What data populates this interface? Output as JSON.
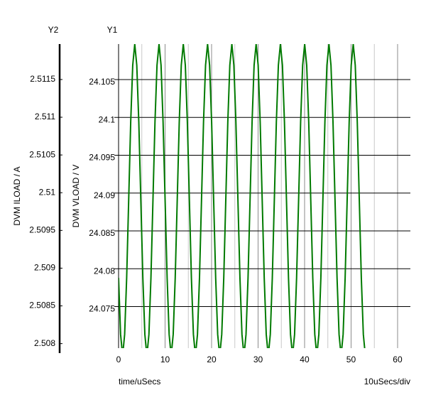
{
  "chart_data": {
    "type": "line",
    "y1_header": "Y1",
    "y2_header": "Y2",
    "ylabel": "DVM VLOAD / V",
    "y2label": "DVM ILOAD / A",
    "xlabel": "time/uSecs",
    "x_scale_note": "10uSecs/div",
    "xlim": [
      0,
      62.75
    ],
    "xticks": [
      0,
      10,
      20,
      30,
      40,
      50,
      60
    ],
    "ylim": [
      24.0695,
      24.1097
    ],
    "yticks": [
      24.075,
      24.08,
      24.085,
      24.09,
      24.095,
      24.1,
      24.105
    ],
    "y2lim": [
      2.50794,
      2.51197
    ],
    "y2ticks": [
      2.508,
      2.5085,
      2.509,
      2.5095,
      2.51,
      2.5105,
      2.511,
      2.5115
    ],
    "grid": true,
    "x": [
      0,
      0.435,
      0.87,
      1.305,
      1.74,
      2.175,
      2.61,
      3.045,
      3.48,
      3.915,
      4.35,
      4.785,
      5.22,
      5.655,
      6.09,
      6.525,
      6.96,
      7.395,
      7.83,
      8.265,
      8.7,
      9.135,
      9.57,
      10.005,
      10.44,
      10.875,
      11.31,
      11.745,
      12.18,
      12.615,
      13.05,
      13.485,
      13.92,
      14.355,
      14.79,
      15.225,
      15.66,
      16.095,
      16.53,
      16.965,
      17.4,
      17.835,
      18.27,
      18.705,
      19.14,
      19.575,
      20.01,
      20.445,
      20.88,
      21.315,
      21.75,
      22.185,
      22.62,
      23.055,
      23.49,
      23.925,
      24.36,
      24.795,
      25.23,
      25.665,
      26.1,
      26.535,
      26.97,
      27.405,
      27.84,
      28.275,
      28.71,
      29.145,
      29.58,
      30.015,
      30.45,
      30.885,
      31.32,
      31.755,
      32.19,
      32.625,
      33.06,
      33.495,
      33.93,
      34.365,
      34.8,
      35.235,
      35.67,
      36.105,
      36.54,
      36.975,
      37.41,
      37.845,
      38.28,
      38.715,
      39.15,
      39.585,
      40.02,
      40.455,
      40.89,
      41.325,
      41.76,
      42.195,
      42.63,
      43.065,
      43.5,
      43.935,
      44.37,
      44.805,
      45.24,
      45.675,
      46.11,
      46.545,
      46.98,
      47.415,
      47.85,
      48.285,
      48.72,
      49.155,
      49.59,
      50.025,
      50.46,
      50.895,
      51.33,
      51.765,
      52.2,
      52.635,
      53.07
    ],
    "series": [
      {
        "name": "DVM VLOAD",
        "color": "#007a00",
        "values": [
          24.0788,
          24.0713,
          24.0685,
          24.0713,
          24.0788,
          24.0891,
          24.0994,
          24.1069,
          24.1097,
          24.1069,
          24.0994,
          24.0891,
          24.0788,
          24.0713,
          24.0685,
          24.0713,
          24.0788,
          24.0891,
          24.0994,
          24.1069,
          24.1097,
          24.1069,
          24.0994,
          24.0891,
          24.0788,
          24.0713,
          24.0685,
          24.0713,
          24.0788,
          24.0891,
          24.0994,
          24.1069,
          24.1097,
          24.1069,
          24.0994,
          24.0891,
          24.0788,
          24.0713,
          24.0685,
          24.0713,
          24.0788,
          24.0891,
          24.0994,
          24.1069,
          24.1097,
          24.1069,
          24.0994,
          24.0891,
          24.0788,
          24.0713,
          24.0685,
          24.0713,
          24.0788,
          24.0891,
          24.0994,
          24.1069,
          24.1097,
          24.1069,
          24.0994,
          24.0891,
          24.0788,
          24.0713,
          24.0685,
          24.0713,
          24.0788,
          24.0891,
          24.0994,
          24.1069,
          24.1097,
          24.1069,
          24.0994,
          24.0891,
          24.0788,
          24.0713,
          24.0685,
          24.0713,
          24.0788,
          24.0891,
          24.0994,
          24.1069,
          24.1097,
          24.1069,
          24.0994,
          24.0891,
          24.0788,
          24.0713,
          24.0685,
          24.0713,
          24.0788,
          24.0891,
          24.0994,
          24.1069,
          24.1097,
          24.1069,
          24.0994,
          24.0891,
          24.0788,
          24.0713,
          24.0685,
          24.0713,
          24.0788,
          24.0891,
          24.0994,
          24.1069,
          24.1097,
          24.1069,
          24.0994,
          24.0891,
          24.0788,
          24.0713,
          24.0685,
          24.0713,
          24.0788,
          24.0891,
          24.0994,
          24.1069,
          24.1097,
          24.1069,
          24.0994,
          24.0891,
          24.0788,
          24.0713,
          24.0685
        ]
      }
    ]
  }
}
